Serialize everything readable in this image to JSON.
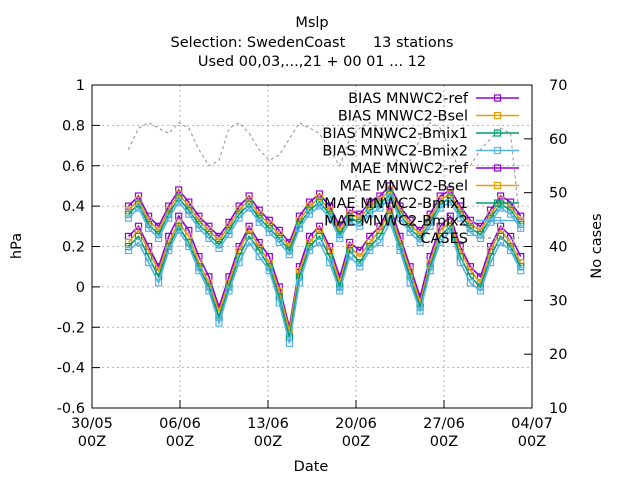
{
  "chart_data": {
    "type": "line",
    "title": "Mslp",
    "subtitle1": "Selection: SwedenCoast      13 stations",
    "subtitle2": "Used 00,03,...,21 + 00 01 ... 12",
    "xlabel": "Date",
    "ylabel": "hPa",
    "y2label": "No cases",
    "ylim": [
      -0.6,
      1.0
    ],
    "y2lim": [
      10,
      70
    ],
    "xlim_days": [
      0,
      35
    ],
    "yticks": [
      "-0.6",
      "-0.4",
      "-0.2",
      "0",
      "0.2",
      "0.4",
      "0.6",
      "0.8",
      "1"
    ],
    "y2ticks": [
      "10",
      "20",
      "30",
      "40",
      "50",
      "60",
      "70"
    ],
    "xticks": [
      {
        "line1": "30/05",
        "line2": "00Z"
      },
      {
        "line1": "06/06",
        "line2": "00Z"
      },
      {
        "line1": "13/06",
        "line2": "00Z"
      },
      {
        "line1": "20/06",
        "line2": "00Z"
      },
      {
        "line1": "27/06",
        "line2": "00Z"
      },
      {
        "line1": "04/07",
        "line2": "00Z"
      }
    ],
    "grid": true,
    "legend_position": "top-right",
    "series": [
      {
        "name": "BIAS MNWC2-ref",
        "color": "#9400d3",
        "marker": "open-square",
        "axis": "y1",
        "values": [
          0.25,
          0.3,
          0.2,
          0.1,
          0.25,
          0.35,
          0.28,
          0.15,
          0.05,
          -0.1,
          0.05,
          0.2,
          0.3,
          0.22,
          0.15,
          0.0,
          -0.2,
          0.1,
          0.25,
          0.3,
          0.2,
          0.05,
          0.22,
          0.18,
          0.25,
          0.3,
          0.4,
          0.25,
          0.1,
          -0.05,
          0.15,
          0.3,
          0.35,
          0.2,
          0.1,
          0.05,
          0.2,
          0.3,
          0.25,
          0.15
        ]
      },
      {
        "name": "BIAS MNWC2-Bsel",
        "color": "#e69f00",
        "marker": "open-square",
        "axis": "y1",
        "values": [
          0.22,
          0.28,
          0.18,
          0.08,
          0.22,
          0.32,
          0.25,
          0.12,
          0.02,
          -0.12,
          0.02,
          0.18,
          0.28,
          0.2,
          0.12,
          -0.02,
          -0.22,
          0.08,
          0.22,
          0.28,
          0.18,
          0.02,
          0.2,
          0.15,
          0.22,
          0.28,
          0.38,
          0.22,
          0.08,
          -0.08,
          0.12,
          0.28,
          0.32,
          0.18,
          0.08,
          0.02,
          0.18,
          0.28,
          0.22,
          0.12
        ]
      },
      {
        "name": "BIAS MNWC2-Bmix1",
        "color": "#009e73",
        "marker": "open-square",
        "axis": "y1",
        "values": [
          0.2,
          0.25,
          0.15,
          0.05,
          0.2,
          0.3,
          0.22,
          0.1,
          0.0,
          -0.15,
          0.0,
          0.15,
          0.25,
          0.18,
          0.1,
          -0.05,
          -0.25,
          0.05,
          0.2,
          0.25,
          0.15,
          0.0,
          0.18,
          0.12,
          0.2,
          0.25,
          0.35,
          0.2,
          0.05,
          -0.1,
          0.1,
          0.25,
          0.3,
          0.15,
          0.05,
          0.0,
          0.15,
          0.25,
          0.2,
          0.1
        ]
      },
      {
        "name": "BIAS MNWC2-Bmix2",
        "color": "#56b4e9",
        "marker": "open-square",
        "axis": "y1",
        "values": [
          0.18,
          0.22,
          0.12,
          0.02,
          0.18,
          0.28,
          0.2,
          0.08,
          -0.02,
          -0.18,
          -0.02,
          0.12,
          0.22,
          0.15,
          0.08,
          -0.08,
          -0.28,
          0.02,
          0.18,
          0.22,
          0.12,
          -0.02,
          0.15,
          0.1,
          0.18,
          0.22,
          0.32,
          0.18,
          0.02,
          -0.12,
          0.08,
          0.22,
          0.28,
          0.12,
          0.02,
          -0.02,
          0.12,
          0.22,
          0.18,
          0.08
        ]
      },
      {
        "name": "MAE MNWC2-ref",
        "color": "#9400d3",
        "marker": "open-square",
        "axis": "y1",
        "values": [
          0.4,
          0.45,
          0.35,
          0.3,
          0.4,
          0.48,
          0.42,
          0.35,
          0.3,
          0.25,
          0.32,
          0.4,
          0.45,
          0.38,
          0.33,
          0.28,
          0.22,
          0.35,
          0.42,
          0.46,
          0.4,
          0.3,
          0.38,
          0.36,
          0.42,
          0.45,
          0.5,
          0.4,
          0.33,
          0.28,
          0.36,
          0.45,
          0.48,
          0.4,
          0.33,
          0.3,
          0.38,
          0.45,
          0.42,
          0.35
        ]
      },
      {
        "name": "MAE MNWC2-Bsel",
        "color": "#e69f00",
        "marker": "open-square",
        "axis": "y1",
        "values": [
          0.38,
          0.43,
          0.33,
          0.28,
          0.38,
          0.46,
          0.4,
          0.33,
          0.28,
          0.23,
          0.3,
          0.38,
          0.43,
          0.36,
          0.31,
          0.26,
          0.2,
          0.33,
          0.4,
          0.44,
          0.38,
          0.28,
          0.36,
          0.34,
          0.4,
          0.43,
          0.48,
          0.38,
          0.31,
          0.26,
          0.34,
          0.43,
          0.46,
          0.38,
          0.31,
          0.28,
          0.36,
          0.43,
          0.4,
          0.33
        ]
      },
      {
        "name": "MAE MNWC2-Bmix1",
        "color": "#009e73",
        "marker": "open-square",
        "axis": "y1",
        "values": [
          0.36,
          0.41,
          0.31,
          0.26,
          0.36,
          0.44,
          0.38,
          0.31,
          0.26,
          0.21,
          0.28,
          0.36,
          0.41,
          0.34,
          0.29,
          0.24,
          0.18,
          0.31,
          0.38,
          0.42,
          0.36,
          0.26,
          0.34,
          0.32,
          0.38,
          0.41,
          0.46,
          0.36,
          0.29,
          0.24,
          0.32,
          0.41,
          0.44,
          0.36,
          0.29,
          0.26,
          0.34,
          0.41,
          0.38,
          0.31
        ]
      },
      {
        "name": "MAE MNWC2-Bmix2",
        "color": "#56b4e9",
        "marker": "open-square",
        "axis": "y1",
        "values": [
          0.34,
          0.39,
          0.29,
          0.24,
          0.34,
          0.42,
          0.36,
          0.29,
          0.24,
          0.19,
          0.26,
          0.34,
          0.39,
          0.32,
          0.27,
          0.22,
          0.16,
          0.29,
          0.36,
          0.4,
          0.34,
          0.24,
          0.32,
          0.3,
          0.36,
          0.39,
          0.44,
          0.34,
          0.27,
          0.22,
          0.3,
          0.39,
          0.42,
          0.34,
          0.27,
          0.24,
          0.32,
          0.39,
          0.36,
          0.29
        ]
      },
      {
        "name": "CASES",
        "color": "#a0a0a0",
        "marker": "none",
        "dashed": true,
        "axis": "y2",
        "values": [
          58,
          62,
          63,
          62,
          61,
          63,
          62,
          58,
          55,
          56,
          62,
          63,
          61,
          58,
          56,
          57,
          60,
          63,
          62,
          61,
          58,
          55,
          60,
          62,
          63,
          62,
          58,
          55,
          56,
          60,
          63,
          62,
          58,
          54,
          55,
          58,
          60,
          62,
          61,
          43
        ]
      }
    ],
    "x_days": [
      2.9,
      3.7,
      4.5,
      5.3,
      6.1,
      6.9,
      7.7,
      8.5,
      9.3,
      10.1,
      10.9,
      11.7,
      12.5,
      13.3,
      14.1,
      14.9,
      15.7,
      16.5,
      17.3,
      18.1,
      18.9,
      19.7,
      20.5,
      21.3,
      22.1,
      22.9,
      23.7,
      24.5,
      25.3,
      26.1,
      26.9,
      27.7,
      28.5,
      29.3,
      30.1,
      30.9,
      31.7,
      32.5,
      33.3,
      34.1
    ]
  }
}
